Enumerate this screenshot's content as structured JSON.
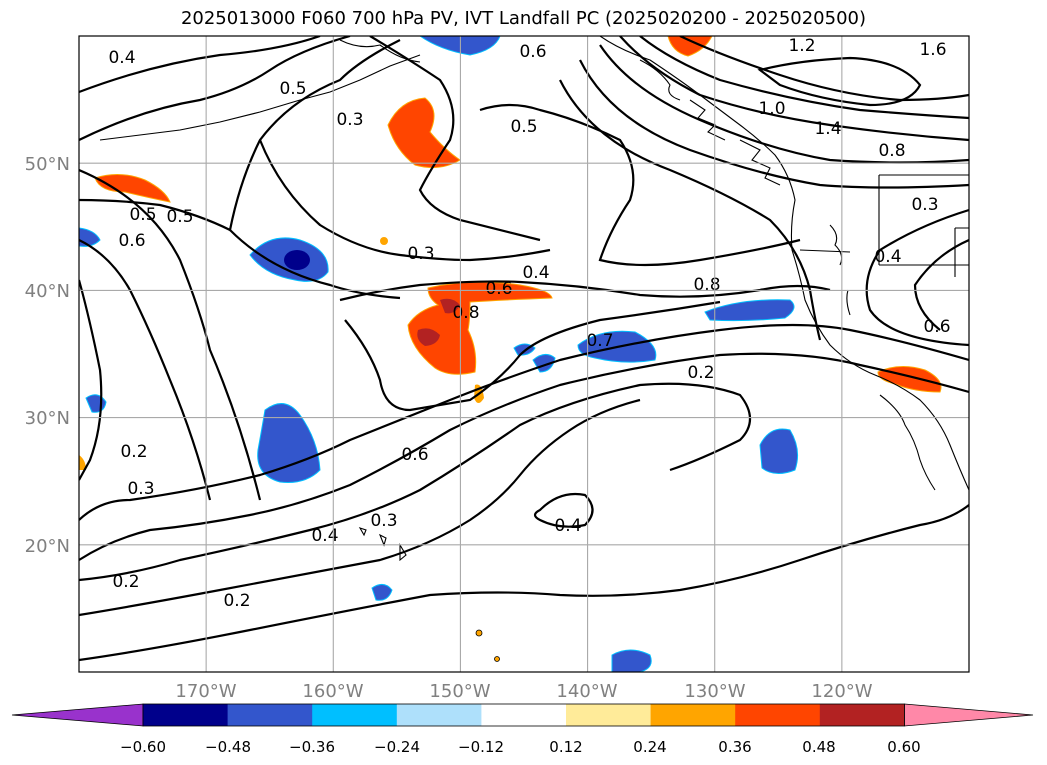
{
  "title": "2025013000 F060 700 hPa PV, IVT Landfall PC (2025020200 - 2025020500)",
  "lat_labels": [
    "50°N",
    "40°N",
    "30°N",
    "20°N"
  ],
  "lon_labels": [
    "170°W",
    "160°W",
    "150°W",
    "140°W",
    "130°W",
    "120°W"
  ],
  "colorbar": {
    "colors": [
      "#9932cc",
      "#00008b",
      "#3356cc",
      "#00bfff",
      "#aee0fb",
      "#ffffff",
      "#ffeb99",
      "#ffa500",
      "#ff4500",
      "#b22222",
      "#ff88a8"
    ],
    "labels": [
      "−0.60",
      "−0.48",
      "−0.36",
      "−0.24",
      "−0.12",
      "0.12",
      "0.24",
      "0.36",
      "0.48",
      "0.60"
    ]
  },
  "contour_labels": [
    "0.4",
    "0.5",
    "0.3",
    "0.6",
    "1.2",
    "1.6",
    "1.0",
    "1.4",
    "0.8",
    "0.5",
    "0.5",
    "0.5",
    "0.6",
    "0.3",
    "0.4",
    "0.6",
    "0.8",
    "0.8",
    "0.3",
    "0.4",
    "0.6",
    "0.7",
    "0.2",
    "0.2",
    "0.3",
    "0.6",
    "0.4",
    "0.3",
    "0.4",
    "0.2",
    "0.2"
  ],
  "map": {
    "lat_range": [
      10,
      60
    ],
    "lon_range": [
      -180,
      -110
    ]
  }
}
